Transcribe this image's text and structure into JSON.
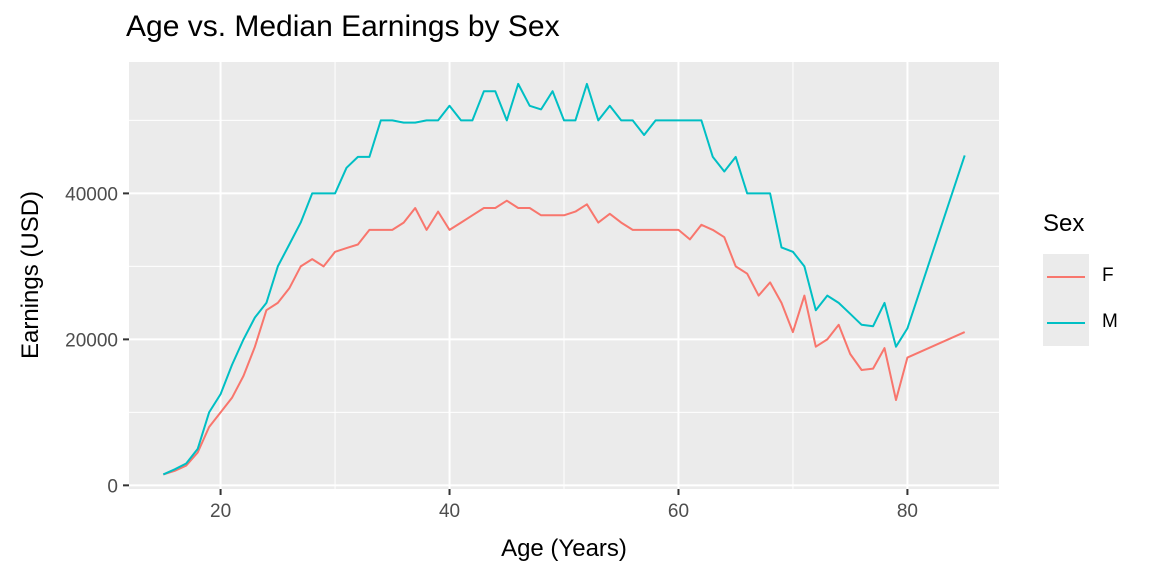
{
  "chart_data": {
    "type": "line",
    "title": "Age vs. Median Earnings by Sex",
    "xlabel": "Age (Years)",
    "ylabel": "Earnings (USD)",
    "xlim": [
      12,
      88
    ],
    "ylim": [
      -500,
      58000
    ],
    "xticks": [
      20,
      40,
      60,
      80
    ],
    "yticks": [
      0,
      20000,
      40000
    ],
    "grid": true,
    "legend": {
      "title": "Sex",
      "position": "right"
    },
    "series": [
      {
        "name": "F",
        "color": "#F8766D",
        "x": [
          15,
          16,
          17,
          18,
          19,
          20,
          21,
          22,
          23,
          24,
          25,
          26,
          27,
          28,
          29,
          30,
          31,
          32,
          33,
          34,
          35,
          36,
          37,
          38,
          39,
          40,
          41,
          42,
          43,
          44,
          45,
          46,
          47,
          48,
          49,
          50,
          51,
          52,
          53,
          54,
          55,
          56,
          57,
          58,
          59,
          60,
          61,
          62,
          63,
          64,
          65,
          66,
          67,
          68,
          69,
          70,
          71,
          72,
          73,
          74,
          75,
          76,
          77,
          78,
          79,
          80,
          85
        ],
        "y": [
          1500,
          2000,
          2700,
          4500,
          8000,
          10000,
          12000,
          15000,
          19000,
          24000,
          25000,
          27000,
          30000,
          31000,
          30000,
          32000,
          32500,
          33000,
          35000,
          35000,
          35000,
          36000,
          38000,
          35000,
          37500,
          35000,
          36000,
          37000,
          38000,
          38000,
          39000,
          38000,
          38000,
          37000,
          37000,
          37000,
          37500,
          38500,
          36000,
          37200,
          36000,
          35000,
          35000,
          35000,
          35000,
          35000,
          33700,
          35700,
          35000,
          34000,
          30000,
          29000,
          26000,
          27800,
          25000,
          21000,
          26000,
          19000,
          20000,
          22000,
          18000,
          15800,
          16000,
          18800,
          11700,
          17500,
          21000
        ]
      },
      {
        "name": "M",
        "color": "#00BFC4",
        "x": [
          15,
          16,
          17,
          18,
          19,
          20,
          21,
          22,
          23,
          24,
          25,
          26,
          27,
          28,
          29,
          30,
          31,
          32,
          33,
          34,
          35,
          36,
          37,
          38,
          39,
          40,
          41,
          42,
          43,
          44,
          45,
          46,
          47,
          48,
          49,
          50,
          51,
          52,
          53,
          54,
          55,
          56,
          57,
          58,
          59,
          60,
          61,
          62,
          63,
          64,
          65,
          66,
          67,
          68,
          69,
          70,
          71,
          72,
          73,
          74,
          75,
          76,
          77,
          78,
          79,
          80,
          85
        ],
        "y": [
          1500,
          2200,
          3000,
          5000,
          10000,
          12500,
          16500,
          20000,
          23000,
          25000,
          30000,
          33000,
          36000,
          40000,
          40000,
          40000,
          43500,
          45000,
          45000,
          50000,
          50000,
          49700,
          49700,
          50000,
          50000,
          52000,
          50000,
          50000,
          54000,
          54000,
          50000,
          55000,
          52000,
          51500,
          54000,
          50000,
          50000,
          55000,
          50000,
          52000,
          50000,
          50000,
          48000,
          50000,
          50000,
          50000,
          50000,
          50000,
          45000,
          43000,
          45000,
          40000,
          40000,
          40000,
          32600,
          32000,
          30000,
          24000,
          26000,
          25000,
          23500,
          22000,
          21800,
          25000,
          19000,
          21500,
          45200
        ]
      }
    ]
  }
}
